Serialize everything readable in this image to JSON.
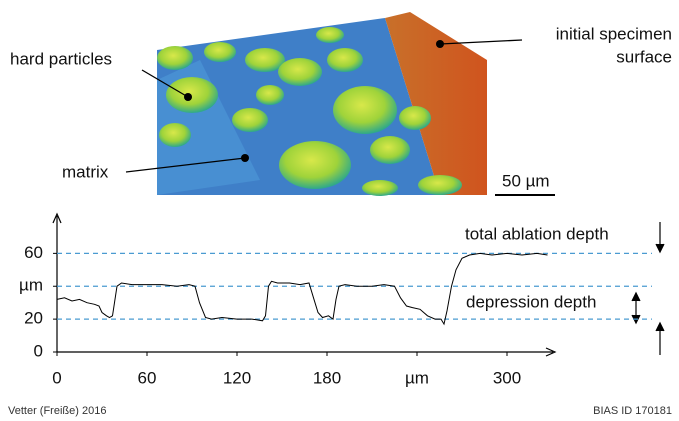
{
  "chart_data": {
    "type": "line",
    "x": [
      0,
      5,
      10,
      15,
      20,
      25,
      28,
      30,
      33,
      35,
      37,
      40,
      43,
      50,
      60,
      70,
      80,
      88,
      92,
      95,
      99,
      103,
      110,
      120,
      130,
      137,
      139,
      141,
      143,
      147,
      155,
      162,
      168,
      171,
      174,
      177,
      181,
      184,
      186,
      188,
      192,
      200,
      210,
      218,
      225,
      229,
      233,
      237,
      242,
      247,
      252,
      256,
      258,
      260,
      263,
      266,
      270,
      275,
      282,
      290,
      300,
      310,
      320,
      327
    ],
    "values": [
      32,
      33,
      31,
      32,
      30,
      29,
      28,
      24,
      22,
      21,
      22,
      40,
      42,
      41,
      41,
      41,
      40,
      41,
      40,
      30,
      21,
      20,
      21,
      20,
      20,
      19,
      22,
      40,
      43,
      42,
      42,
      41,
      42,
      33,
      24,
      21,
      22,
      20,
      32,
      40,
      41,
      40,
      40,
      41,
      40,
      33,
      28,
      27,
      26,
      22,
      20,
      20,
      17,
      25,
      40,
      50,
      57,
      59,
      60,
      59,
      60,
      59,
      60,
      59
    ],
    "color": "#000000",
    "xlim": [
      0,
      332
    ],
    "ylim": [
      0,
      73
    ],
    "xticks": [
      0,
      60,
      120,
      180,
      {
        "value": 240,
        "label": "µm"
      },
      300
    ],
    "yticks": [
      0,
      20,
      {
        "value": 40,
        "label": "µm"
      },
      60
    ],
    "reference_lines": [
      60,
      40,
      20
    ],
    "reference_color": "#4a9bd1",
    "annotations": {
      "total": "total ablation depth",
      "depression": "depression depth"
    }
  },
  "figure": {
    "hard_particles": "hard particles",
    "matrix": "matrix",
    "surface_line1": "initial specimen",
    "surface_line2": "surface",
    "scale": "50 µm"
  },
  "footer": {
    "left": "Vetter (Freiße) 2016",
    "right": "BIAS ID 170181"
  }
}
